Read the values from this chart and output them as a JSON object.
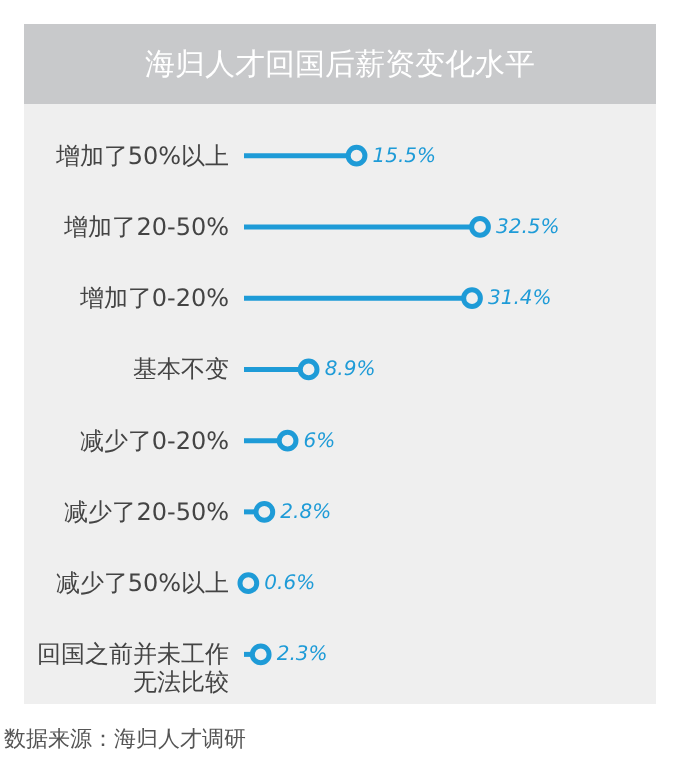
{
  "chart_data": {
    "type": "lollipop",
    "orientation": "horizontal",
    "title": "海归人才回国后薪资变化水平",
    "categories": [
      "增加了50%以上",
      "增加了20-50%",
      "增加了0-20%",
      "基本不变",
      "减少了0-20%",
      "减少了20-50%",
      "减少了50%以上",
      "回国之前并未工作无法比较"
    ],
    "values": [
      15.5,
      32.5,
      31.4,
      8.9,
      6,
      2.8,
      0.6,
      2.3
    ],
    "value_labels": [
      "15.5%",
      "32.5%",
      "31.4%",
      "8.9%",
      "6%",
      "2.8%",
      "0.6%",
      "2.3%"
    ],
    "color": "#1e9bd7",
    "marker": "circle",
    "annotations": [
      "数据来源：海归人才调研"
    ]
  }
}
